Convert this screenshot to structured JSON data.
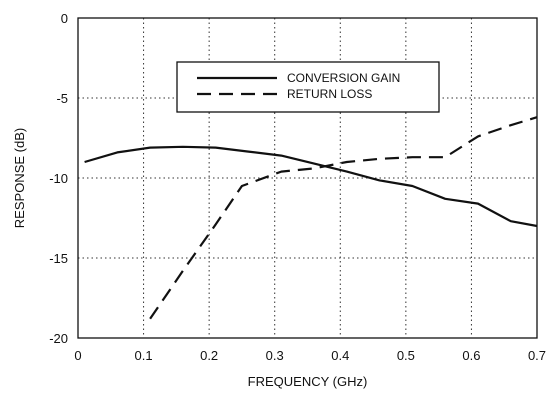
{
  "chart_data": {
    "type": "line",
    "title": "",
    "xlabel": "FREQUENCY (GHz)",
    "ylabel": "RESPONSE (dB)",
    "xlim": [
      0,
      0.7
    ],
    "ylim": [
      -20,
      0
    ],
    "x_ticks": [
      "0",
      "0.1",
      "0.2",
      "0.3",
      "0.4",
      "0.5",
      "0.6",
      "0.7"
    ],
    "y_ticks": [
      "0",
      "-5",
      "-10",
      "-15",
      "-20"
    ],
    "grid": "dotted",
    "legend_position": "top-center",
    "series": [
      {
        "name": "CONVERSION GAIN",
        "style": "solid",
        "color": "#111111",
        "x": [
          0.01,
          0.06,
          0.11,
          0.16,
          0.21,
          0.26,
          0.31,
          0.36,
          0.41,
          0.46,
          0.51,
          0.56,
          0.61,
          0.66,
          0.7
        ],
        "y": [
          -9.0,
          -8.4,
          -8.1,
          -8.05,
          -8.1,
          -8.35,
          -8.6,
          -9.1,
          -9.6,
          -10.15,
          -10.5,
          -11.3,
          -11.6,
          -12.7,
          -13.0
        ]
      },
      {
        "name": "RETURN LOSS",
        "style": "dashed",
        "color": "#111111",
        "x": [
          0.11,
          0.16,
          0.21,
          0.25,
          0.26,
          0.31,
          0.36,
          0.41,
          0.46,
          0.51,
          0.56,
          0.61,
          0.66,
          0.7
        ],
        "y": [
          -18.8,
          -15.8,
          -12.9,
          -10.5,
          -10.35,
          -9.6,
          -9.4,
          -9.0,
          -8.8,
          -8.7,
          -8.7,
          -7.4,
          -6.7,
          -6.2
        ]
      }
    ]
  }
}
